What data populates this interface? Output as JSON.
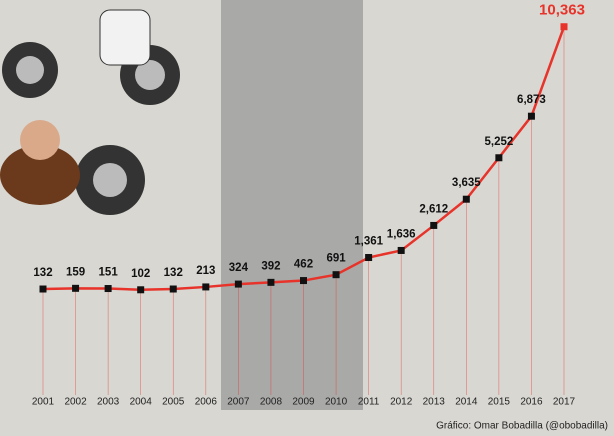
{
  "chart_data": {
    "type": "line",
    "categories": [
      "2001",
      "2002",
      "2003",
      "2004",
      "2005",
      "2006",
      "2007",
      "2008",
      "2009",
      "2010",
      "2011",
      "2012",
      "2013",
      "2014",
      "2015",
      "2016",
      "2017"
    ],
    "series": [
      {
        "color": "#e8332a",
        "values": [
          132,
          159,
          151,
          102,
          132,
          213,
          324,
          392,
          462,
          691,
          1361,
          1636,
          2612,
          3635,
          5252,
          6873,
          10363
        ],
        "value_labels": [
          "132",
          "159",
          "151",
          "102",
          "132",
          "213",
          "324",
          "392",
          "462",
          "691",
          "1,361",
          "1,636",
          "2,612",
          "3,635",
          "5,252",
          "6,873",
          "10,363"
        ]
      }
    ],
    "ylim": [
      0,
      11000
    ],
    "credit": "Gráfico: Omar Bobadilla (@obobadilla)"
  }
}
